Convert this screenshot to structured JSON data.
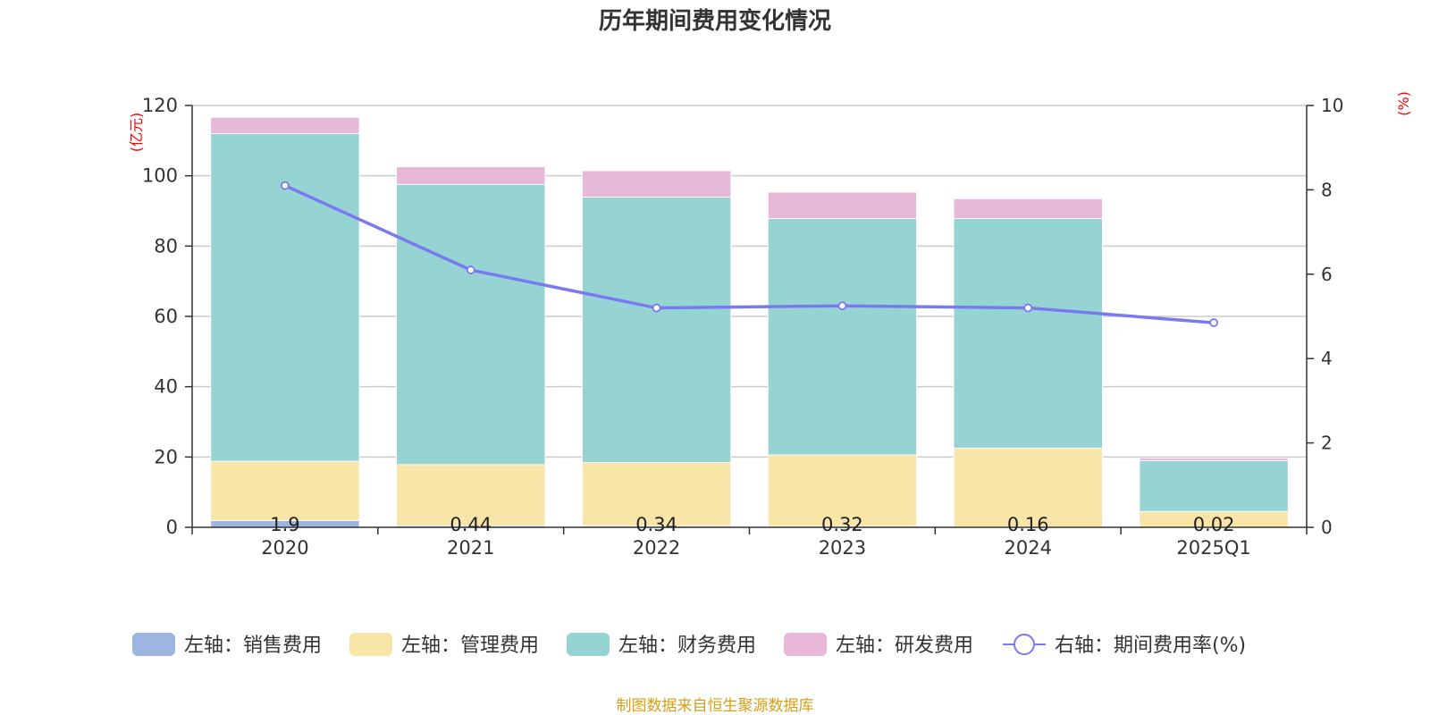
{
  "chart_data": {
    "type": "bar",
    "title": "历年期间费用变化情况",
    "categories": [
      "2020",
      "2021",
      "2022",
      "2023",
      "2024",
      "2025Q1"
    ],
    "left_axis": {
      "unit": "(亿元)",
      "ylim": [
        0,
        120
      ],
      "ticks": [
        "0",
        "20",
        "40",
        "60",
        "80",
        "100",
        "120"
      ]
    },
    "right_axis": {
      "unit": "(%)",
      "ylim": [
        0,
        10
      ],
      "ticks": [
        "0",
        "2",
        "4",
        "6",
        "8",
        "10"
      ]
    },
    "series": [
      {
        "name": "左轴：销售费用",
        "color": "#9db5e0",
        "values": [
          1.9,
          0.44,
          0.34,
          0.32,
          0.16,
          0.02
        ],
        "labels": [
          "1.9",
          "0.44",
          "0.34",
          "0.32",
          "0.16",
          "0.02"
        ]
      },
      {
        "name": "左轴：管理费用",
        "color": "#f8e6a8",
        "values": [
          16.9,
          17.4,
          18.1,
          20.3,
          22.4,
          4.5
        ]
      },
      {
        "name": "左轴：财务费用",
        "color": "#96d4d4",
        "values": [
          93.2,
          79.7,
          75.5,
          67.2,
          65.3,
          14.4
        ]
      },
      {
        "name": "左轴：研发费用",
        "color": "#e8b8d8",
        "values": [
          4.6,
          5.0,
          7.5,
          7.5,
          5.6,
          0.8
        ]
      }
    ],
    "line": {
      "name": "右轴：期间费用率(%)",
      "color": "#7a7af0",
      "values": [
        8.1,
        6.1,
        5.2,
        5.25,
        5.2,
        4.85
      ]
    },
    "gridlines": true,
    "legend_position": "bottom"
  },
  "source": "制图数据来自恒生聚源数据库"
}
